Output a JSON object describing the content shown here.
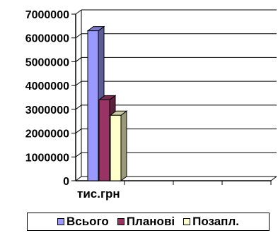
{
  "chart_data": {
    "type": "bar",
    "style": "3d-clustered",
    "categories": [
      "тис.грн",
      "",
      "",
      ""
    ],
    "series": [
      {
        "name": "Всього",
        "color": "#9999FF",
        "values": [
          6300000,
          0,
          0,
          0
        ]
      },
      {
        "name": "Планові",
        "color": "#993366",
        "values": [
          3400000,
          0,
          0,
          0
        ]
      },
      {
        "name": "Позапл.",
        "color": "#FFFFCC",
        "values": [
          2750000,
          0,
          0,
          0
        ]
      }
    ],
    "ylim": [
      0,
      7000000
    ],
    "yticks": [
      0,
      1000000,
      2000000,
      3000000,
      4000000,
      5000000,
      6000000,
      7000000
    ],
    "ytick_labels": [
      "0",
      "1000000",
      "2000000",
      "3000000",
      "4000000",
      "5000000",
      "6000000",
      "7000000"
    ],
    "grid": true,
    "legend_position": "bottom"
  }
}
